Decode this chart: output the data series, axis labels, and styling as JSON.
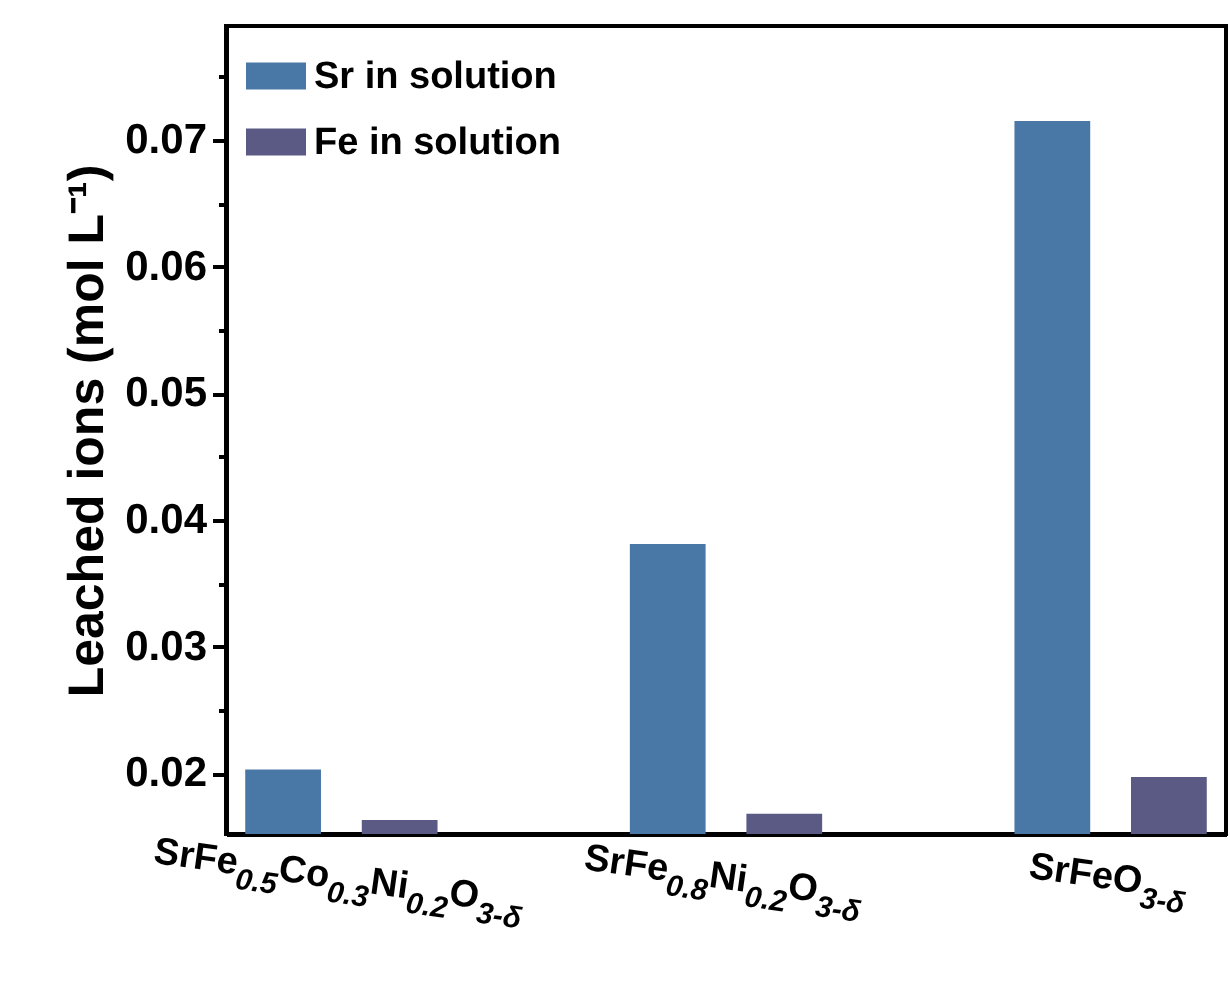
{
  "chart_data": {
    "type": "bar",
    "categories": [
      "SrFe$_{0.5}$Co$_{0.3}$Ni$_{0.2}$O$_{3-δ}$",
      "SrFe$_{0.8}$Ni$_{0.2}$O$_{3-δ}$",
      "SrFeO$_{3-δ}$"
    ],
    "ylabel": "Leached ions (mol L⁻¹)",
    "ylim": [
      0.0152,
      0.079
    ],
    "yticks": [
      0.02,
      {
        "value": 0.025,
        "label": null
      },
      0.03,
      {
        "value": 0.035,
        "label": null
      },
      0.04,
      {
        "value": 0.045,
        "label": null
      },
      0.05,
      {
        "value": 0.055,
        "label": null
      },
      0.06,
      {
        "value": 0.065,
        "label": null
      },
      0.07,
      {
        "value": 0.075,
        "label": null
      }
    ],
    "series": [
      {
        "name": "Sr in solution",
        "color": "#4a78a6",
        "values": [
          0.0203,
          0.0381,
          0.0715
        ]
      },
      {
        "name": "Fe in solution",
        "color": "#5a5a85",
        "values": [
          0.0163,
          0.0168,
          0.0197
        ]
      }
    ],
    "legend": "top left"
  }
}
